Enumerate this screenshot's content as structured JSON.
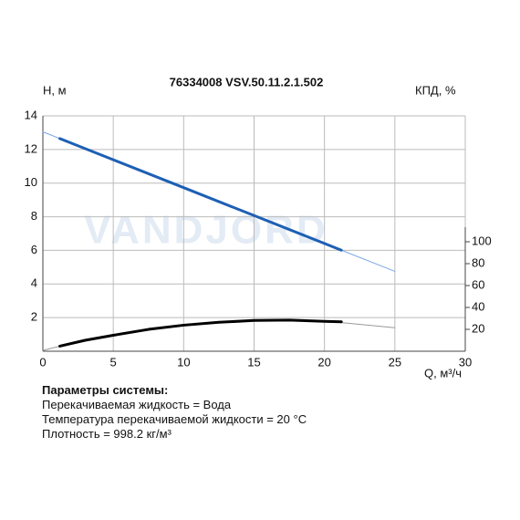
{
  "chart_data": {
    "type": "line",
    "title": "76334008 VSV.50.11.2.1.502",
    "ylabel": "H, м",
    "y2label": "КПД, %",
    "xlabel": "Q, м³/ч",
    "watermark": "VANDJORD",
    "xlim": [
      0,
      30
    ],
    "xticks": [
      0,
      5,
      10,
      15,
      20,
      25,
      30
    ],
    "ylim": [
      0,
      14
    ],
    "yticks": [
      2,
      4,
      6,
      8,
      10,
      12,
      14
    ],
    "y2lim": [
      0,
      215
    ],
    "y2ticks": [
      20,
      40,
      60,
      80,
      100
    ],
    "grid": true,
    "series": [
      {
        "color": "#7aa7e6",
        "linewidth": 1,
        "x": [
          0,
          5,
          10,
          15,
          20,
          25
        ],
        "values": [
          13.05,
          11.39,
          9.73,
          8.07,
          6.41,
          4.75
        ]
      },
      {
        "color": "#1d5fb4",
        "linewidth": 3,
        "x": [
          1.2,
          5,
          10,
          15,
          20,
          21.2
        ],
        "values": [
          12.65,
          11.39,
          9.73,
          8.07,
          6.41,
          6.01
        ]
      },
      {
        "color": "#999999",
        "linewidth": 1,
        "x": [
          0,
          1.2,
          5,
          10,
          15,
          20,
          25
        ],
        "values": [
          0.05,
          0.3,
          0.95,
          1.55,
          1.85,
          1.8,
          1.4
        ]
      },
      {
        "color": "#000000",
        "linewidth": 3,
        "x": [
          1.2,
          3,
          5,
          7.5,
          10,
          12.5,
          15,
          17.5,
          20,
          21.2
        ],
        "values": [
          0.3,
          0.65,
          0.95,
          1.3,
          1.55,
          1.72,
          1.83,
          1.85,
          1.78,
          1.75
        ]
      }
    ]
  },
  "parameters": {
    "heading": "Параметры системы:",
    "lines": [
      "Перекачиваемая жидкость = Вода",
      "Температура перекачиваемой жидкости = 20 °C",
      "Плотность = 998.2 кг/м³"
    ]
  }
}
